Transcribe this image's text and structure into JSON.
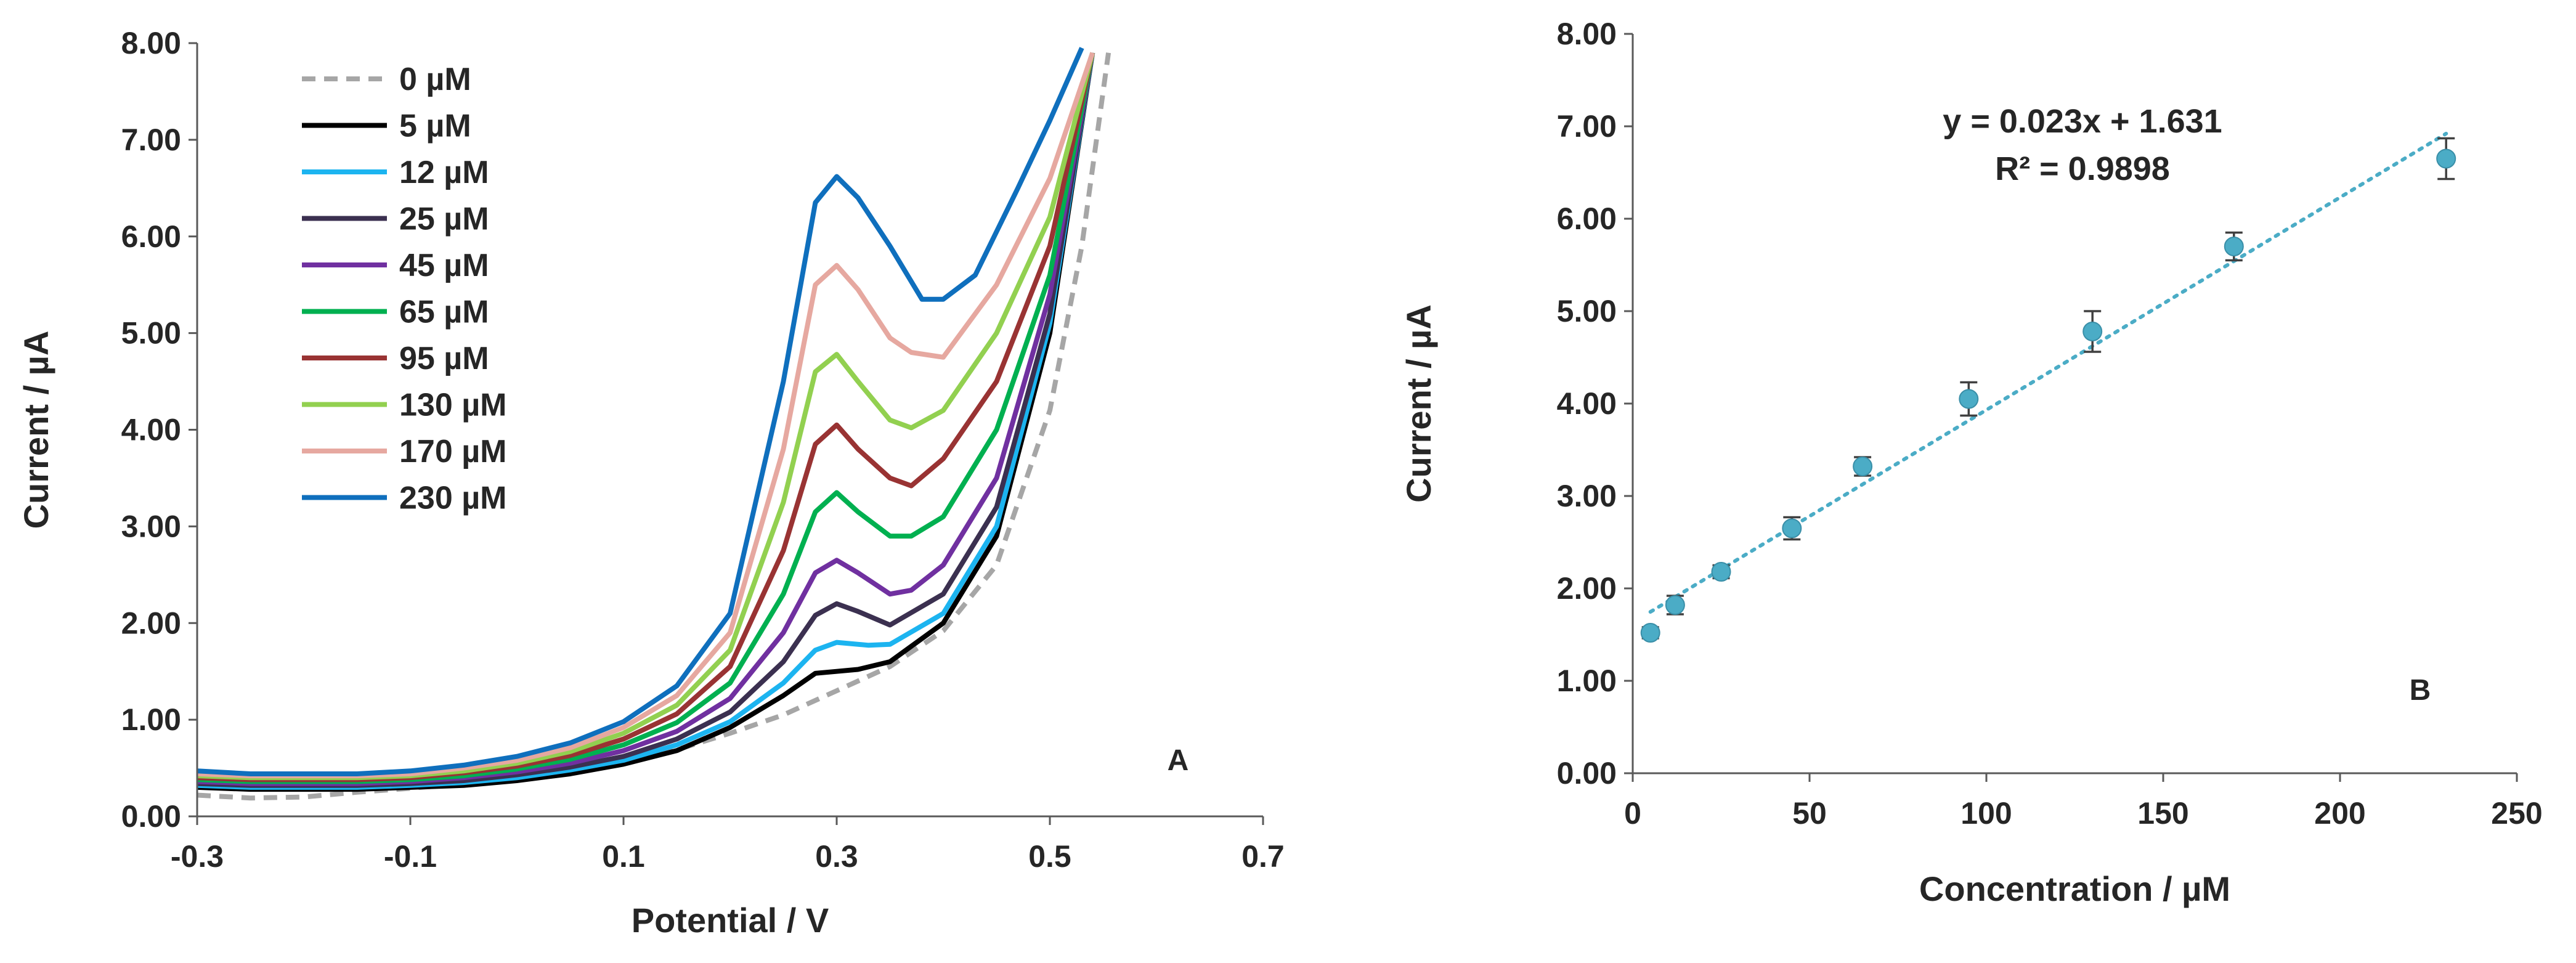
{
  "chart_data": [
    {
      "type": "line",
      "panel_label": "A",
      "xlabel": "Potential / V",
      "ylabel": "Current / µA",
      "xlim": [
        -0.3,
        0.7
      ],
      "ylim": [
        0,
        8
      ],
      "xticks": [
        -0.3,
        -0.1,
        0.1,
        0.3,
        0.5,
        0.7
      ],
      "xtick_labels": [
        "-0.3",
        "-0.1",
        "0.1",
        "0.3",
        "0.5",
        "0.7"
      ],
      "yticks": [
        0,
        1,
        2,
        3,
        4,
        5,
        6,
        7,
        8
      ],
      "ytick_labels": [
        "0.00",
        "1.00",
        "2.00",
        "3.00",
        "4.00",
        "5.00",
        "6.00",
        "7.00",
        "8.00"
      ],
      "legend_position": "top-left",
      "series": [
        {
          "name": "0 µM",
          "color": "#a6a6a6",
          "dash": true,
          "x": [
            -0.3,
            -0.25,
            -0.2,
            -0.15,
            -0.1,
            -0.05,
            0,
            0.05,
            0.1,
            0.15,
            0.2,
            0.25,
            0.3,
            0.35,
            0.4,
            0.45,
            0.5,
            0.53,
            0.555
          ],
          "y": [
            0.22,
            0.19,
            0.2,
            0.25,
            0.29,
            0.34,
            0.39,
            0.46,
            0.56,
            0.69,
            0.86,
            1.05,
            1.3,
            1.55,
            1.92,
            2.6,
            4.2,
            5.9,
            7.9
          ]
        },
        {
          "name": "5 µM",
          "color": "#000000",
          "dash": false,
          "x": [
            -0.3,
            -0.25,
            -0.2,
            -0.15,
            -0.1,
            -0.05,
            0,
            0.05,
            0.1,
            0.15,
            0.2,
            0.25,
            0.28,
            0.3,
            0.32,
            0.35,
            0.4,
            0.45,
            0.5,
            0.54
          ],
          "y": [
            0.3,
            0.28,
            0.28,
            0.28,
            0.3,
            0.32,
            0.37,
            0.44,
            0.54,
            0.68,
            0.92,
            1.25,
            1.48,
            1.5,
            1.52,
            1.6,
            2.0,
            2.9,
            5.0,
            7.9
          ]
        },
        {
          "name": "12 µM",
          "color": "#1cb4f0",
          "dash": false,
          "x": [
            -0.3,
            -0.25,
            -0.2,
            -0.15,
            -0.1,
            -0.05,
            0,
            0.05,
            0.1,
            0.15,
            0.2,
            0.25,
            0.28,
            0.3,
            0.33,
            0.35,
            0.4,
            0.45,
            0.5,
            0.54
          ],
          "y": [
            0.32,
            0.3,
            0.3,
            0.3,
            0.32,
            0.35,
            0.4,
            0.48,
            0.58,
            0.74,
            0.98,
            1.38,
            1.72,
            1.8,
            1.77,
            1.78,
            2.1,
            3.0,
            5.1,
            7.9
          ]
        },
        {
          "name": "25 µM",
          "color": "#3b3050",
          "dash": false,
          "x": [
            -0.3,
            -0.25,
            -0.2,
            -0.15,
            -0.1,
            -0.05,
            0,
            0.05,
            0.1,
            0.15,
            0.2,
            0.25,
            0.28,
            0.3,
            0.32,
            0.35,
            0.4,
            0.45,
            0.5,
            0.54
          ],
          "y": [
            0.34,
            0.32,
            0.32,
            0.32,
            0.34,
            0.37,
            0.43,
            0.51,
            0.62,
            0.8,
            1.08,
            1.6,
            2.08,
            2.2,
            2.12,
            1.98,
            2.3,
            3.2,
            5.2,
            7.9
          ]
        },
        {
          "name": "45 µM",
          "color": "#7030a0",
          "dash": false,
          "x": [
            -0.3,
            -0.25,
            -0.2,
            -0.15,
            -0.1,
            -0.05,
            0,
            0.05,
            0.1,
            0.15,
            0.2,
            0.25,
            0.28,
            0.3,
            0.32,
            0.35,
            0.37,
            0.4,
            0.45,
            0.5,
            0.54
          ],
          "y": [
            0.36,
            0.34,
            0.34,
            0.34,
            0.36,
            0.4,
            0.46,
            0.55,
            0.68,
            0.88,
            1.22,
            1.9,
            2.52,
            2.65,
            2.52,
            2.3,
            2.34,
            2.6,
            3.5,
            5.4,
            7.9
          ]
        },
        {
          "name": "65 µM",
          "color": "#00b050",
          "dash": false,
          "x": [
            -0.3,
            -0.25,
            -0.2,
            -0.15,
            -0.1,
            -0.05,
            0,
            0.05,
            0.1,
            0.15,
            0.2,
            0.25,
            0.28,
            0.3,
            0.32,
            0.35,
            0.37,
            0.4,
            0.45,
            0.5,
            0.54
          ],
          "y": [
            0.38,
            0.36,
            0.36,
            0.36,
            0.38,
            0.42,
            0.49,
            0.59,
            0.74,
            0.97,
            1.38,
            2.3,
            3.15,
            3.35,
            3.15,
            2.9,
            2.9,
            3.1,
            4.0,
            5.6,
            7.9
          ]
        },
        {
          "name": "95 µM",
          "color": "#993333",
          "dash": false,
          "x": [
            -0.3,
            -0.25,
            -0.2,
            -0.15,
            -0.1,
            -0.05,
            0,
            0.05,
            0.1,
            0.15,
            0.2,
            0.25,
            0.28,
            0.3,
            0.32,
            0.35,
            0.37,
            0.4,
            0.45,
            0.5,
            0.54
          ],
          "y": [
            0.4,
            0.38,
            0.38,
            0.38,
            0.4,
            0.45,
            0.52,
            0.63,
            0.8,
            1.06,
            1.55,
            2.75,
            3.85,
            4.05,
            3.8,
            3.5,
            3.42,
            3.7,
            4.5,
            5.9,
            7.9
          ]
        },
        {
          "name": "130 µM",
          "color": "#92d050",
          "dash": false,
          "x": [
            -0.3,
            -0.25,
            -0.2,
            -0.15,
            -0.1,
            -0.05,
            0,
            0.05,
            0.1,
            0.15,
            0.2,
            0.25,
            0.28,
            0.3,
            0.32,
            0.35,
            0.37,
            0.4,
            0.45,
            0.5,
            0.54
          ],
          "y": [
            0.42,
            0.4,
            0.4,
            0.4,
            0.42,
            0.47,
            0.55,
            0.67,
            0.86,
            1.15,
            1.72,
            3.25,
            4.6,
            4.78,
            4.5,
            4.1,
            4.02,
            4.2,
            5.0,
            6.2,
            7.9
          ]
        },
        {
          "name": "170 µM",
          "color": "#e6a8a0",
          "dash": false,
          "x": [
            -0.3,
            -0.25,
            -0.2,
            -0.15,
            -0.1,
            -0.05,
            0,
            0.05,
            0.1,
            0.15,
            0.2,
            0.25,
            0.28,
            0.3,
            0.32,
            0.35,
            0.37,
            0.4,
            0.45,
            0.5,
            0.54
          ],
          "y": [
            0.44,
            0.42,
            0.42,
            0.42,
            0.44,
            0.5,
            0.58,
            0.71,
            0.92,
            1.25,
            1.9,
            3.8,
            5.5,
            5.7,
            5.45,
            4.95,
            4.8,
            4.75,
            5.5,
            6.6,
            7.9
          ]
        },
        {
          "name": "230 µM",
          "color": "#0f6fbd",
          "dash": false,
          "x": [
            -0.3,
            -0.25,
            -0.2,
            -0.15,
            -0.1,
            -0.05,
            0,
            0.05,
            0.1,
            0.15,
            0.2,
            0.25,
            0.28,
            0.3,
            0.32,
            0.35,
            0.38,
            0.4,
            0.43,
            0.47,
            0.5,
            0.53
          ],
          "y": [
            0.47,
            0.44,
            0.44,
            0.44,
            0.47,
            0.53,
            0.62,
            0.76,
            0.98,
            1.35,
            2.1,
            4.5,
            6.35,
            6.62,
            6.4,
            5.9,
            5.35,
            5.35,
            5.6,
            6.5,
            7.2,
            7.95
          ]
        }
      ]
    },
    {
      "type": "scatter",
      "panel_label": "B",
      "xlabel": "Concentration / µM",
      "ylabel": "Current / µA",
      "xlim": [
        0,
        250
      ],
      "ylim": [
        0,
        8
      ],
      "xticks": [
        0,
        50,
        100,
        150,
        200,
        250
      ],
      "xtick_labels": [
        "0",
        "50",
        "100",
        "150",
        "200",
        "250"
      ],
      "yticks": [
        0,
        1,
        2,
        3,
        4,
        5,
        6,
        7,
        8
      ],
      "ytick_labels": [
        "0.00",
        "1.00",
        "2.00",
        "3.00",
        "4.00",
        "5.00",
        "6.00",
        "7.00",
        "8.00"
      ],
      "marker_color": "#4bacc6",
      "x": [
        5,
        12,
        25,
        45,
        65,
        95,
        130,
        170,
        230
      ],
      "y": [
        1.52,
        1.82,
        2.18,
        2.65,
        3.32,
        4.05,
        4.78,
        5.7,
        6.65
      ],
      "error": [
        0.06,
        0.1,
        0.07,
        0.12,
        0.1,
        0.18,
        0.22,
        0.15,
        0.22
      ],
      "trendline": {
        "slope": 0.023,
        "intercept": 1.631,
        "x_range": [
          5,
          230
        ],
        "color": "#4bacc6",
        "equation": "y = 0.023x + 1.631",
        "r2": "R² = 0.9898"
      }
    }
  ]
}
